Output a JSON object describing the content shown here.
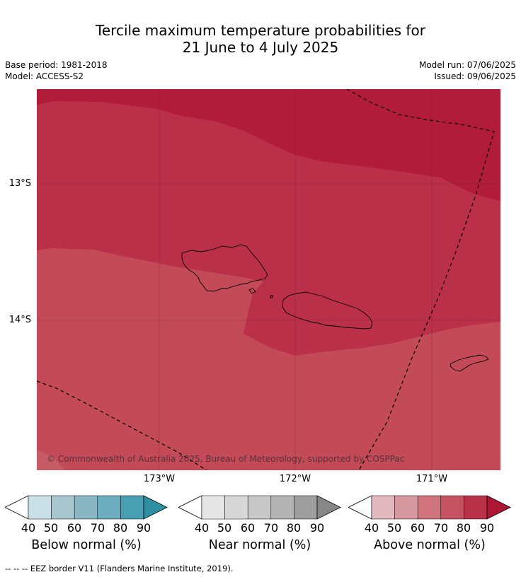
{
  "title": {
    "line1": "Tercile maximum temperature probabilities for",
    "line2": "21 June to 4 July 2025"
  },
  "meta": {
    "base_period": "Base period: 1981-2018",
    "model": "Model: ACCESS-S2",
    "model_run": "Model run: 07/06/2025",
    "issued": "Issued: 09/06/2025"
  },
  "map": {
    "copyright": "© Commonwealth of Australia 2025, Bureau of Meteorology, supported by COSPPac",
    "lat_labels": [
      "13°S",
      "14°S"
    ],
    "lon_labels": [
      "173°W",
      "172°W",
      "171°W"
    ],
    "zones": [
      {
        "category": "above normal",
        "range": "80-90%",
        "color": "#b01c3a"
      },
      {
        "category": "above normal",
        "range": "70-80%",
        "color": "#bb3049"
      },
      {
        "category": "above normal",
        "range": "60-70%",
        "color": "#c34b57"
      }
    ],
    "islands": [
      "Savai'i",
      "Upolu",
      "Tutuila"
    ]
  },
  "colorbars": [
    {
      "title": "Below normal (%)",
      "ticks": [
        "40",
        "50",
        "60",
        "70",
        "80",
        "90"
      ],
      "colors": [
        "#ffffff",
        "#c9e0e6",
        "#a7c6cd",
        "#8ab6c3",
        "#6eadbd",
        "#489fb1",
        "#2d8fa1"
      ]
    },
    {
      "title": "Near normal (%)",
      "ticks": [
        "40",
        "50",
        "60",
        "70",
        "80",
        "90"
      ],
      "colors": [
        "#ffffff",
        "#e6e6e6",
        "#d7d7d7",
        "#c8c8c8",
        "#b3b3b3",
        "#9e9e9e",
        "#878787"
      ]
    },
    {
      "title": "Above normal (%)",
      "ticks": [
        "40",
        "50",
        "60",
        "70",
        "80",
        "90"
      ],
      "colors": [
        "#ffffff",
        "#e2b9be",
        "#d6989f",
        "#cf747d",
        "#c45361",
        "#b9324a",
        "#ad1634"
      ]
    }
  ],
  "footnote": "--  --  -- EEZ border V11 (Flanders Marine Institute, 2019)."
}
